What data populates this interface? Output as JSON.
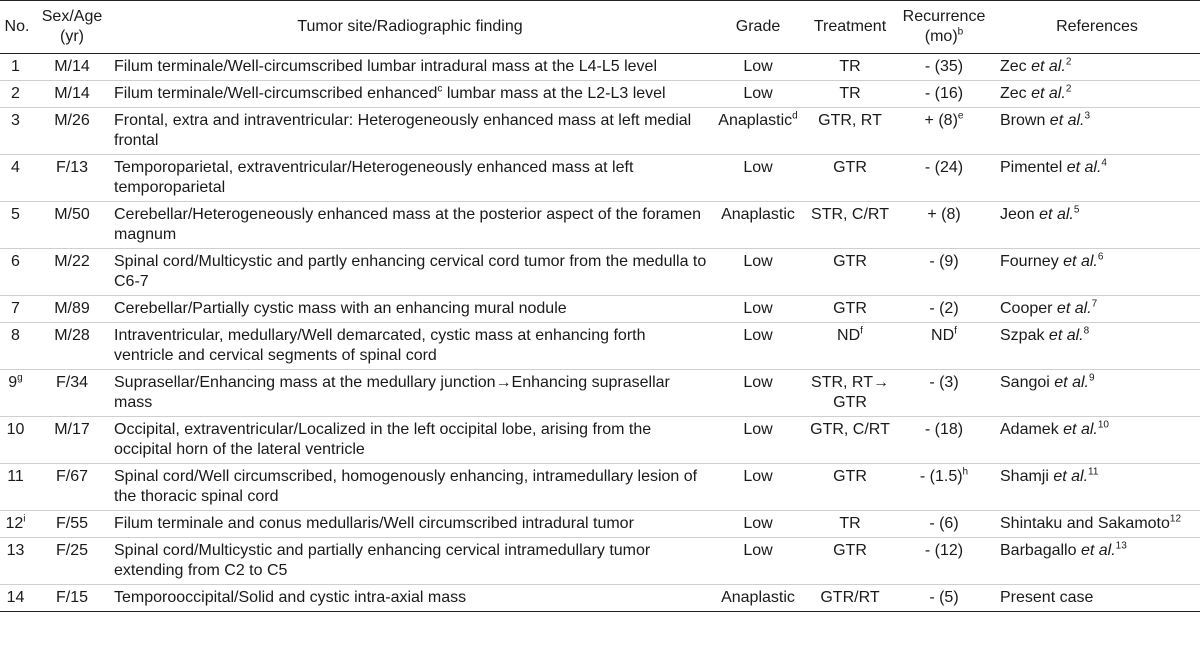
{
  "headers": {
    "no": "No.",
    "sex_age": "Sex/Age (yr)",
    "site": "Tumor site/Radiographic finding",
    "grade": "Grade",
    "treatment": "Treatment",
    "recurrence": "Recurrence (mo)",
    "recurrence_sup": "b",
    "references": "References"
  },
  "rows": [
    {
      "no": "1",
      "no_sup": "",
      "sex_age": "M/14",
      "site": "Filum terminale/Well-circumscribed lumbar intradural mass at the L4-L5 level",
      "site_sup": "",
      "site_after": "",
      "grade": "Low",
      "grade_sup": "",
      "treatment": "TR",
      "treatment_sup": "",
      "recurrence": "- (35)",
      "recurrence_sup": "",
      "ref_author": "Zec",
      "ref_etal": " et al.",
      "ref_sup": "2"
    },
    {
      "no": "2",
      "no_sup": "",
      "sex_age": "M/14",
      "site": "Filum terminale/Well-circumscribed enhanced",
      "site_sup": "c",
      "site_after": " lumbar mass at the L2-L3 level",
      "grade": "Low",
      "grade_sup": "",
      "treatment": "TR",
      "treatment_sup": "",
      "recurrence": "- (16)",
      "recurrence_sup": "",
      "ref_author": "Zec",
      "ref_etal": " et al.",
      "ref_sup": "2"
    },
    {
      "no": "3",
      "no_sup": "",
      "sex_age": "M/26",
      "site": "Frontal, extra and intraventricular: Heterogeneously enhanced mass at left medial frontal",
      "site_sup": "",
      "site_after": "",
      "grade": "Anaplastic",
      "grade_sup": "d",
      "treatment": "GTR, RT",
      "treatment_sup": "",
      "recurrence": "+ (8)",
      "recurrence_sup": "e",
      "ref_author": "Brown",
      "ref_etal": " et al.",
      "ref_sup": "3"
    },
    {
      "no": "4",
      "no_sup": "",
      "sex_age": "F/13",
      "site": "Temporoparietal, extraventricular/Heterogeneously enhanced mass at left temporoparietal",
      "site_sup": "",
      "site_after": "",
      "grade": "Low",
      "grade_sup": "",
      "treatment": "GTR",
      "treatment_sup": "",
      "recurrence": "- (24)",
      "recurrence_sup": "",
      "ref_author": "Pimentel",
      "ref_etal": " et al.",
      "ref_sup": "4"
    },
    {
      "no": "5",
      "no_sup": "",
      "sex_age": "M/50",
      "site": "Cerebellar/Heterogeneously enhanced mass at the posterior aspect of the foramen magnum",
      "site_sup": "",
      "site_after": "",
      "grade": "Anaplastic",
      "grade_sup": "",
      "treatment": "STR, C/RT",
      "treatment_sup": "",
      "recurrence": "+ (8)",
      "recurrence_sup": "",
      "ref_author": "Jeon",
      "ref_etal": " et al.",
      "ref_sup": "5"
    },
    {
      "no": "6",
      "no_sup": "",
      "sex_age": "M/22",
      "site": "Spinal cord/Multicystic and partly enhancing cervical cord tumor from the medulla to C6-7",
      "site_sup": "",
      "site_after": "",
      "grade": "Low",
      "grade_sup": "",
      "treatment": "GTR",
      "treatment_sup": "",
      "recurrence": "- (9)",
      "recurrence_sup": "",
      "ref_author": "Fourney",
      "ref_etal": " et al.",
      "ref_sup": "6"
    },
    {
      "no": "7",
      "no_sup": "",
      "sex_age": "M/89",
      "site": "Cerebellar/Partially cystic mass with an enhancing mural nodule",
      "site_sup": "",
      "site_after": "",
      "grade": "Low",
      "grade_sup": "",
      "treatment": "GTR",
      "treatment_sup": "",
      "recurrence": "- (2)",
      "recurrence_sup": "",
      "ref_author": "Cooper",
      "ref_etal": " et al.",
      "ref_sup": "7"
    },
    {
      "no": "8",
      "no_sup": "",
      "sex_age": "M/28",
      "site": "Intraventricular, medullary/Well demarcated, cystic mass at enhancing forth ventricle and cervical segments of spinal cord",
      "site_sup": "",
      "site_after": "",
      "grade": "Low",
      "grade_sup": "",
      "treatment": "ND",
      "treatment_sup": "f",
      "recurrence": "ND",
      "recurrence_sup": "f",
      "ref_author": "Szpak",
      "ref_etal": " et al.",
      "ref_sup": "8"
    },
    {
      "no": "9",
      "no_sup": "g",
      "sex_age": "F/34",
      "site": "Suprasellar/Enhancing mass at the medullary junction→Enhancing suprasellar mass",
      "site_sup": "",
      "site_after": "",
      "grade": "Low",
      "grade_sup": "",
      "treatment": "STR, RT→ GTR",
      "treatment_sup": "",
      "recurrence": "- (3)",
      "recurrence_sup": "",
      "ref_author": "Sangoi",
      "ref_etal": " et al.",
      "ref_sup": "9"
    },
    {
      "no": "10",
      "no_sup": "",
      "sex_age": "M/17",
      "site": "Occipital, extraventricular/Localized in the left occipital lobe, arising from the occipital horn of the lateral ventricle",
      "site_sup": "",
      "site_after": "",
      "grade": "Low",
      "grade_sup": "",
      "treatment": "GTR, C/RT",
      "treatment_sup": "",
      "recurrence": "- (18)",
      "recurrence_sup": "",
      "ref_author": "Adamek",
      "ref_etal": " et al.",
      "ref_sup": "10"
    },
    {
      "no": "11",
      "no_sup": "",
      "sex_age": "F/67",
      "site": "Spinal cord/Well circumscribed, homogenously enhancing, intramedullary lesion of the thoracic spinal cord",
      "site_sup": "",
      "site_after": "",
      "grade": "Low",
      "grade_sup": "",
      "treatment": "GTR",
      "treatment_sup": "",
      "recurrence": "- (1.5)",
      "recurrence_sup": "h",
      "ref_author": "Shamji",
      "ref_etal": " et al.",
      "ref_sup": "11"
    },
    {
      "no": "12",
      "no_sup": "i",
      "sex_age": "F/55",
      "site": "Filum terminale and conus medullaris/Well circumscribed intradural tumor",
      "site_sup": "",
      "site_after": "",
      "grade": "Low",
      "grade_sup": "",
      "treatment": "TR",
      "treatment_sup": "",
      "recurrence": "- (6)",
      "recurrence_sup": "",
      "ref_author": "Shintaku and Sakamoto",
      "ref_etal": "",
      "ref_sup": "12"
    },
    {
      "no": "13",
      "no_sup": "",
      "sex_age": "F/25",
      "site": "Spinal cord/Multicystic and partially enhancing cervical intramedullary tumor extending from C2 to C5",
      "site_sup": "",
      "site_after": "",
      "grade": "Low",
      "grade_sup": "",
      "treatment": "GTR",
      "treatment_sup": "",
      "recurrence": "- (12)",
      "recurrence_sup": "",
      "ref_author": "Barbagallo",
      "ref_etal": " et al.",
      "ref_sup": "13"
    },
    {
      "no": "14",
      "no_sup": "",
      "sex_age": "F/15",
      "site": "Temporooccipital/Solid and cystic intra-axial mass",
      "site_sup": "",
      "site_after": "",
      "grade": "Anaplastic",
      "grade_sup": "",
      "treatment": "GTR/RT",
      "treatment_sup": "",
      "recurrence": "- (5)",
      "recurrence_sup": "",
      "ref_author": "Present case",
      "ref_etal": "",
      "ref_sup": ""
    }
  ]
}
